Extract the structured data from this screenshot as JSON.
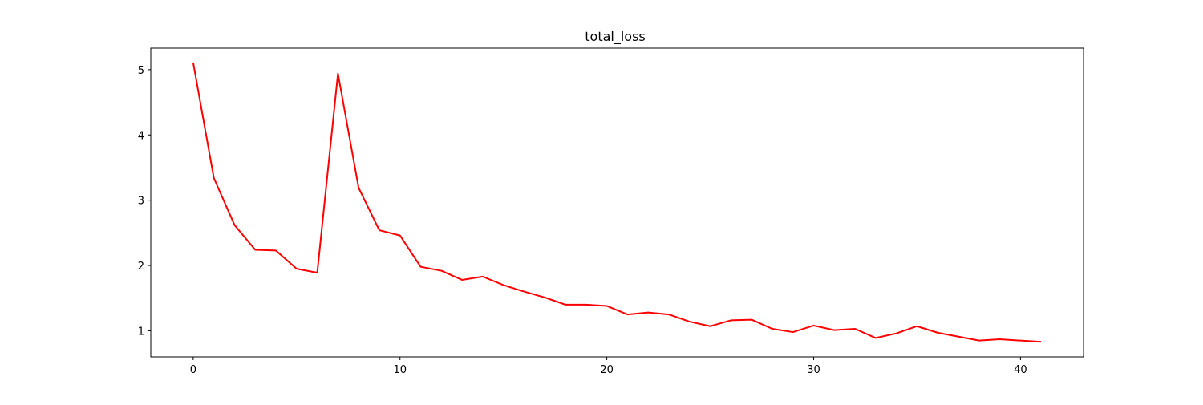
{
  "chart_data": {
    "type": "line",
    "title": "total_loss",
    "xlabel": "",
    "ylabel": "",
    "xlim": [
      -2.05,
      43.05
    ],
    "ylim": [
      0.6,
      5.33
    ],
    "x_ticks": [
      0,
      10,
      20,
      30,
      40
    ],
    "y_ticks": [
      1,
      2,
      3,
      4,
      5
    ],
    "grid": false,
    "legend": "none",
    "series": [
      {
        "color": "#ff0000",
        "x": [
          0,
          1,
          2,
          3,
          4,
          5,
          6,
          7,
          8,
          9,
          10,
          11,
          12,
          13,
          14,
          15,
          16,
          17,
          18,
          19,
          20,
          21,
          22,
          23,
          24,
          25,
          26,
          27,
          28,
          29,
          30,
          31,
          32,
          33,
          34,
          35,
          36,
          37,
          38,
          39,
          40,
          41
        ],
        "values": [
          5.11,
          3.34,
          2.62,
          2.24,
          2.23,
          1.95,
          1.89,
          4.94,
          3.19,
          2.54,
          2.46,
          1.98,
          1.92,
          1.78,
          1.83,
          1.7,
          1.6,
          1.51,
          1.4,
          1.4,
          1.38,
          1.25,
          1.28,
          1.25,
          1.14,
          1.07,
          1.16,
          1.17,
          1.03,
          0.98,
          1.08,
          1.01,
          1.03,
          0.89,
          0.96,
          1.07,
          0.97,
          0.91,
          0.85,
          0.87,
          0.85,
          0.83
        ]
      }
    ]
  }
}
